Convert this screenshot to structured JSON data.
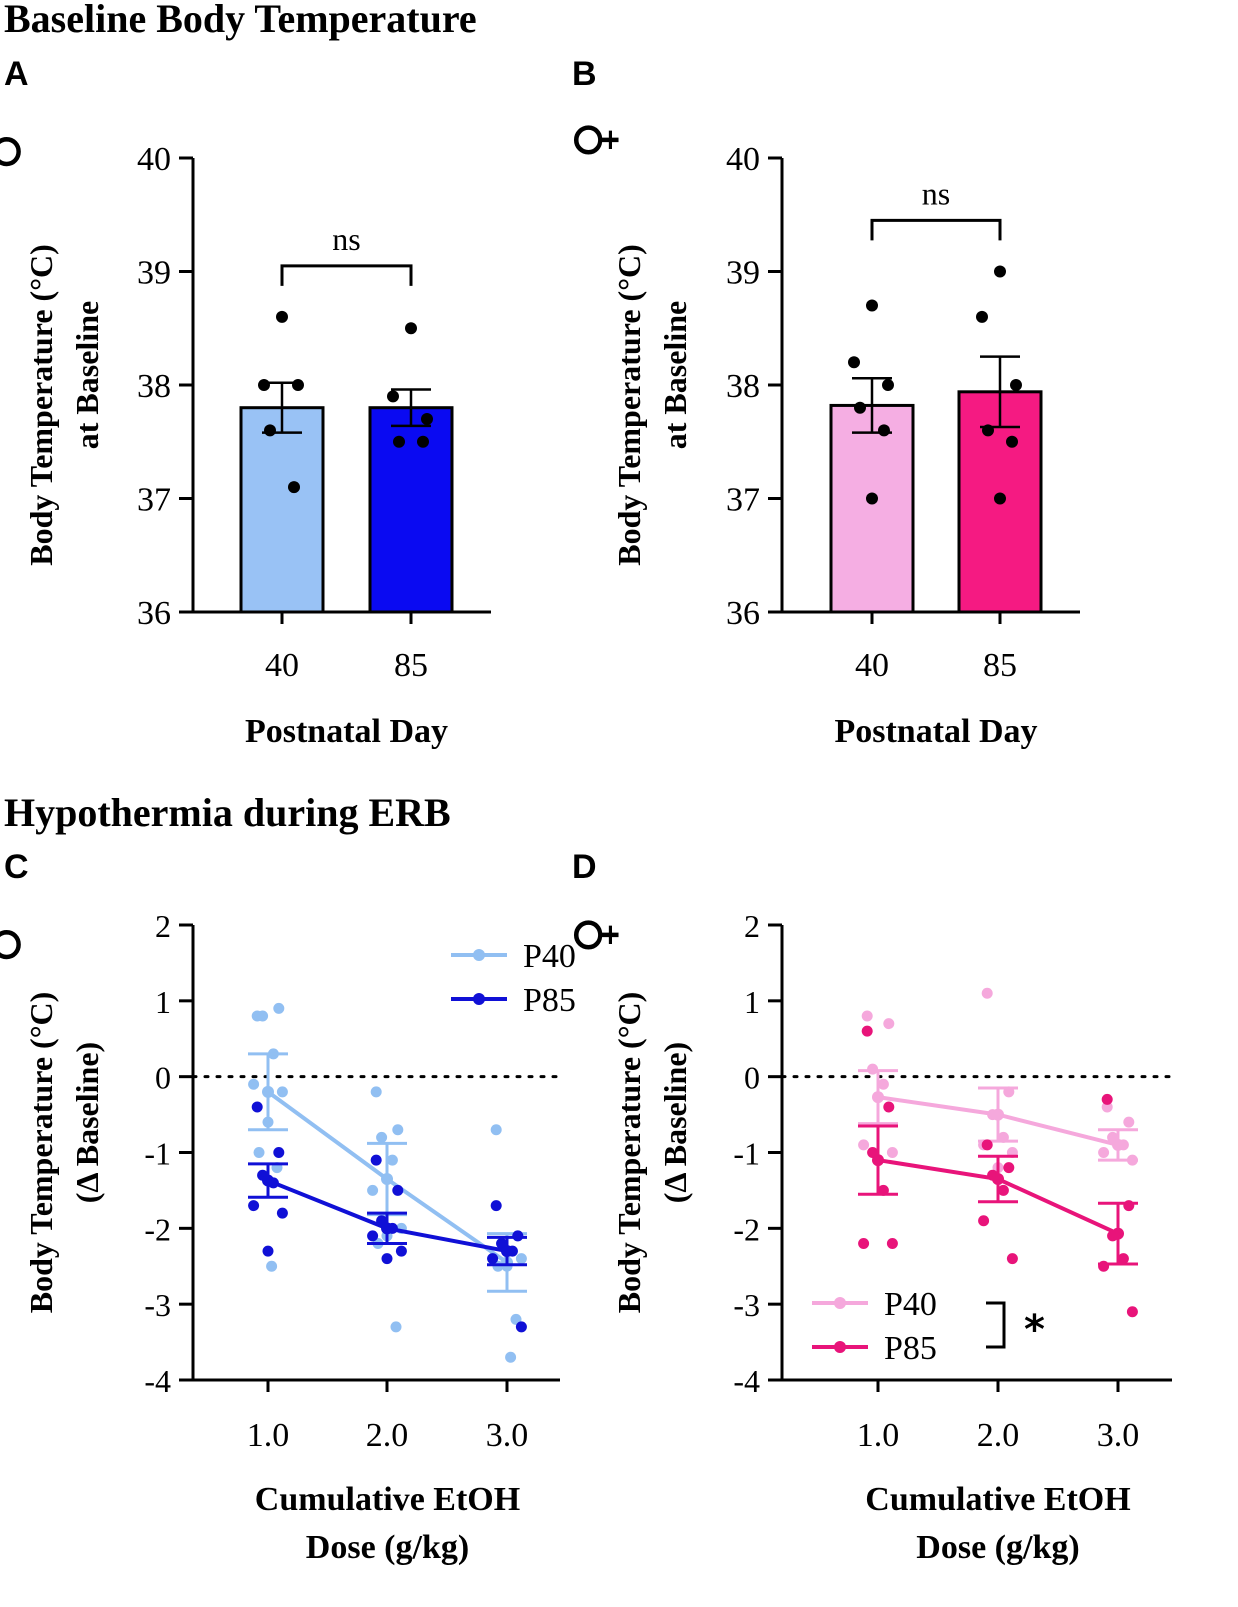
{
  "sections": {
    "top_title": "Baseline Body Temperature",
    "bottom_title": "Hypothermia during ERB"
  },
  "chart_data": [
    {
      "panel": "A",
      "sex_symbol": "♂",
      "type": "bar",
      "categories": [
        "40",
        "85"
      ],
      "values": [
        37.8,
        37.8
      ],
      "sem": [
        0.22,
        0.16
      ],
      "colors": [
        "#99c2f5",
        "#0a0af2"
      ],
      "points": [
        [
          38.6,
          38.0,
          38.0,
          37.6,
          37.1
        ],
        [
          38.5,
          37.9,
          37.7,
          37.5,
          37.5
        ]
      ],
      "xlabel": "Postnatal Day",
      "ylabel_lines": [
        "Body Temperature (°C)",
        "at Baseline"
      ],
      "ylim": [
        36,
        40
      ],
      "yticks": [
        "36",
        "37",
        "38",
        "39",
        "40"
      ],
      "significance": "ns"
    },
    {
      "panel": "B",
      "sex_symbol": "♀",
      "type": "bar",
      "categories": [
        "40",
        "85"
      ],
      "values": [
        37.82,
        37.94
      ],
      "sem": [
        0.24,
        0.31
      ],
      "colors": [
        "#f5aee3",
        "#f51a82"
      ],
      "points": [
        [
          38.7,
          38.2,
          38.0,
          37.8,
          37.6,
          37.0
        ],
        [
          39.0,
          38.6,
          38.0,
          37.6,
          37.5,
          37.0
        ]
      ],
      "xlabel": "Postnatal Day",
      "ylabel_lines": [
        "Body Temperature (°C)",
        "at Baseline"
      ],
      "ylim": [
        36,
        40
      ],
      "yticks": [
        "36",
        "37",
        "38",
        "39",
        "40"
      ],
      "significance": "ns"
    },
    {
      "panel": "C",
      "sex_symbol": "♂",
      "type": "line",
      "categories": [
        "1.0",
        "2.0",
        "3.0"
      ],
      "series": [
        {
          "name": "P40",
          "color": "#91bff2",
          "values": [
            -0.2,
            -1.35,
            -2.45
          ],
          "sem": [
            0.5,
            0.47,
            0.38
          ],
          "points": [
            [
              0.8,
              0.9,
              0.8,
              0.3,
              -0.1,
              -0.2,
              -0.6,
              -1.0,
              -1.2,
              -2.5
            ],
            [
              -0.2,
              -0.7,
              -0.8,
              -1.1,
              -1.5,
              -2.0,
              -2.1,
              -2.2,
              -3.3
            ],
            [
              -0.7,
              -2.1,
              -2.2,
              -2.3,
              -2.4,
              -2.4,
              -2.5,
              -2.5,
              -3.2,
              -3.7
            ]
          ]
        },
        {
          "name": "P85",
          "color": "#1010d6",
          "values": [
            -1.37,
            -2.0,
            -2.3
          ],
          "sem": [
            0.22,
            0.2,
            0.18
          ],
          "points": [
            [
              -0.4,
              -1.0,
              -1.3,
              -1.4,
              -1.7,
              -1.8,
              -2.3
            ],
            [
              -1.1,
              -1.5,
              -1.9,
              -2.0,
              -2.1,
              -2.3,
              -2.4
            ],
            [
              -1.7,
              -2.1,
              -2.2,
              -2.3,
              -2.4,
              -3.3
            ]
          ]
        }
      ],
      "xlabel_lines": [
        "Cumulative EtOH",
        "Dose (g/kg)"
      ],
      "ylabel_lines": [
        "Body Temperature (°C)",
        "(Δ Baseline)"
      ],
      "ylim": [
        -4,
        2
      ],
      "yticks": [
        "-4",
        "-3",
        "-2",
        "-1",
        "0",
        "1",
        "2"
      ],
      "reference_line": 0,
      "legend_position": "top-right"
    },
    {
      "panel": "D",
      "sex_symbol": "♀",
      "type": "line",
      "categories": [
        "1.0",
        "2.0",
        "3.0"
      ],
      "series": [
        {
          "name": "P40",
          "color": "#f5a8dc",
          "values": [
            -0.27,
            -0.5,
            -0.9
          ],
          "sem": [
            0.35,
            0.35,
            0.2
          ],
          "points": [
            [
              0.8,
              0.7,
              0.1,
              -0.1,
              -0.9,
              -1.0,
              -1.1
            ],
            [
              1.1,
              -0.2,
              -0.5,
              -0.8,
              -0.9,
              -1.0,
              -1.2
            ],
            [
              -0.4,
              -0.6,
              -0.8,
              -0.9,
              -1.0,
              -1.1
            ]
          ]
        },
        {
          "name": "P85",
          "color": "#e8147a",
          "values": [
            -1.1,
            -1.35,
            -2.07
          ],
          "sem": [
            0.45,
            0.3,
            0.4
          ],
          "points": [
            [
              0.6,
              -0.4,
              -1.0,
              -1.5,
              -2.2,
              -2.2
            ],
            [
              -0.9,
              -1.2,
              -1.3,
              -1.5,
              -1.9,
              -2.4
            ],
            [
              -0.3,
              -1.7,
              -2.1,
              -2.4,
              -2.5,
              -3.1
            ]
          ]
        }
      ],
      "xlabel_lines": [
        "Cumulative EtOH",
        "Dose (g/kg)"
      ],
      "ylabel_lines": [
        "Body Temperature (°C)",
        "(Δ Baseline)"
      ],
      "ylim": [
        -4,
        2
      ],
      "yticks": [
        "-4",
        "-3",
        "-2",
        "-1",
        "0",
        "1",
        "2"
      ],
      "reference_line": 0,
      "legend_position": "bottom-left",
      "significance": "*"
    }
  ]
}
